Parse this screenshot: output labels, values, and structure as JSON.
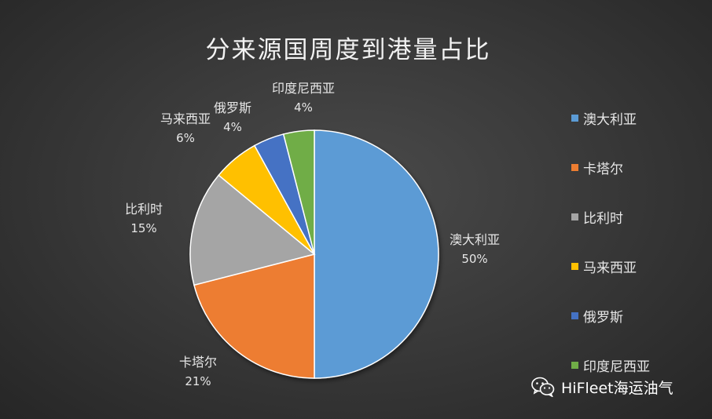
{
  "chart_data": {
    "type": "pie",
    "title": "分来源国周度到港量占比",
    "slices": [
      {
        "name": "澳大利亚",
        "value": 50,
        "label": "50%",
        "color": "#5b9bd5"
      },
      {
        "name": "卡塔尔",
        "value": 21,
        "label": "21%",
        "color": "#ed7d31"
      },
      {
        "name": "比利时",
        "value": 15,
        "label": "15%",
        "color": "#a5a5a5"
      },
      {
        "name": "马来西亚",
        "value": 6,
        "label": "6%",
        "color": "#ffc000"
      },
      {
        "name": "俄罗斯",
        "value": 4,
        "label": "4%",
        "color": "#4472c4"
      },
      {
        "name": "印度尼西亚",
        "value": 4,
        "label": "4%",
        "color": "#70ad47"
      }
    ],
    "legend_position": "right"
  },
  "watermark": {
    "text": "HiFleet海运油气",
    "icon": "wechat-icon"
  }
}
